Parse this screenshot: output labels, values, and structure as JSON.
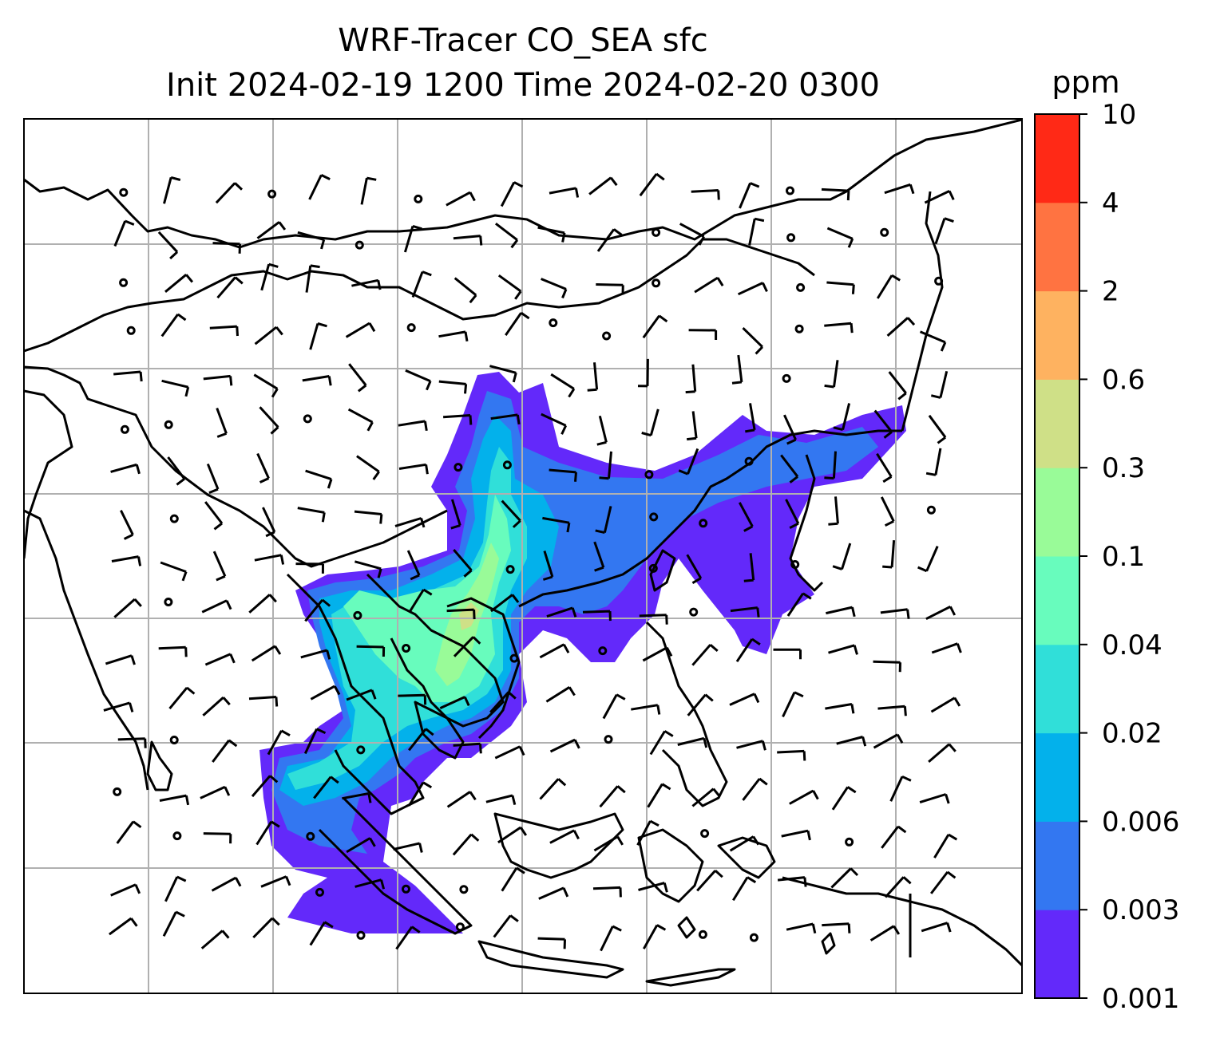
{
  "title": {
    "line1": "WRF-Tracer CO_SEA sfc",
    "line2": "Init 2024-02-19 1200 Time 2024-02-20 0300"
  },
  "colorbar": {
    "unit": "ppm",
    "levels": [
      "0.001",
      "0.003",
      "0.006",
      "0.02",
      "0.04",
      "0.1",
      "0.3",
      "0.6",
      "2",
      "4",
      "10"
    ],
    "colors": [
      "#6329fa",
      "#3377f1",
      "#03b1eb",
      "#30dfd9",
      "#68fcbd",
      "#99fb98",
      "#cfe087",
      "#feb260",
      "#ff7341",
      "#ff2916"
    ]
  },
  "map": {
    "gridlines": true,
    "gridline_color": "#b0b0b0",
    "coastline_color": "#000000",
    "wind_barbs": true
  }
}
